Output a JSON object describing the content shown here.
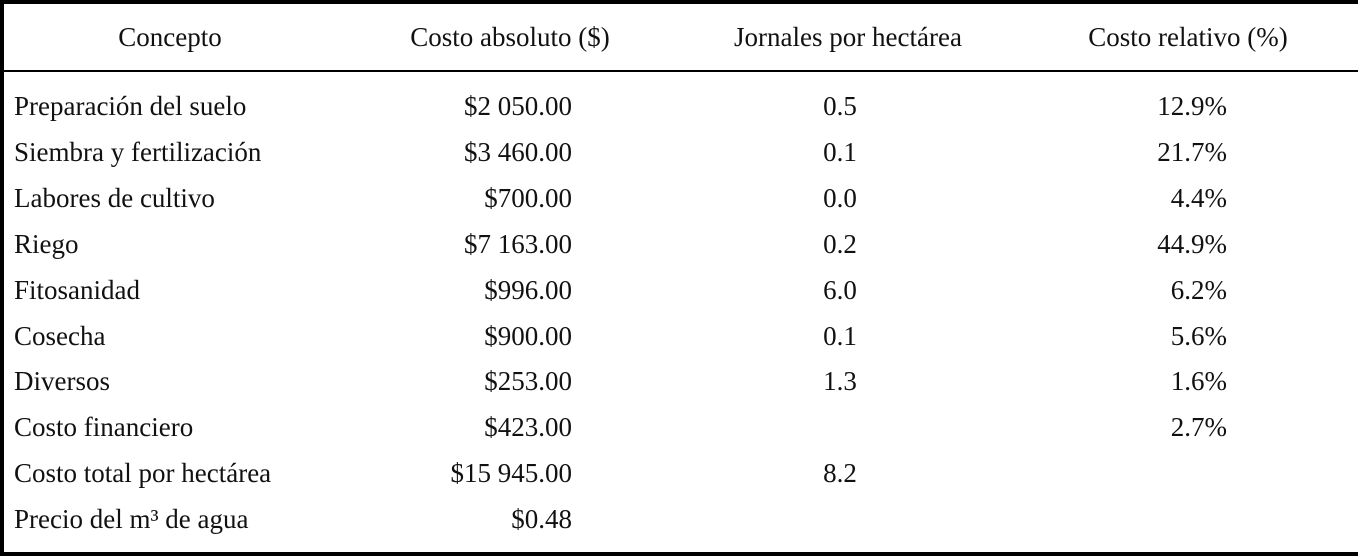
{
  "table": {
    "header": [
      "Concepto",
      "Costo absoluto ($)",
      "Jornales por hectárea",
      "Costo relativo (%)"
    ],
    "rows": [
      [
        "Preparación del suelo",
        "$2 050.00",
        "0.5",
        "12.9%"
      ],
      [
        "Siembra y fertilización",
        "$3 460.00",
        "0.1",
        "21.7%"
      ],
      [
        "Labores de cultivo",
        "$700.00",
        "0.0",
        "4.4%"
      ],
      [
        "Riego",
        "$7 163.00",
        "0.2",
        "44.9%"
      ],
      [
        "Fitosanidad",
        "$996.00",
        "6.0",
        "6.2%"
      ],
      [
        "Cosecha",
        "$900.00",
        "0.1",
        "5.6%"
      ],
      [
        "Diversos",
        "$253.00",
        "1.3",
        "1.6%"
      ],
      [
        "Costo financiero",
        "$423.00",
        null,
        "2.7%"
      ],
      [
        "Costo total por hectárea",
        "$15 945.00",
        "8.2",
        null
      ],
      [
        "Precio del m³ de agua",
        "$0.48",
        null,
        null
      ]
    ]
  }
}
